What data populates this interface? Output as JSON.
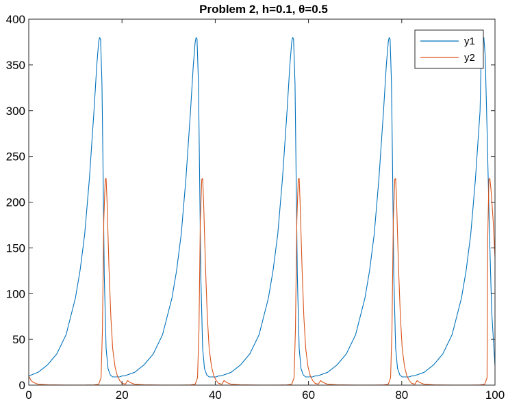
{
  "chart_data": {
    "type": "line",
    "title": "Problem 2, h=0.1, θ=0.5",
    "xlabel": "",
    "ylabel": "",
    "xlim": [
      0,
      100
    ],
    "ylim": [
      0,
      400
    ],
    "xticks": [
      0,
      20,
      40,
      60,
      80,
      100
    ],
    "yticks": [
      0,
      50,
      100,
      150,
      200,
      250,
      300,
      350,
      400
    ],
    "grid": false,
    "legend_position": "top-right",
    "series": [
      {
        "name": "y1",
        "color": "#0072BD",
        "x": [
          0,
          2,
          4,
          6,
          8,
          10,
          11,
          12,
          13,
          14,
          14.6,
          15,
          15.2,
          15.4,
          15.7,
          15.9,
          16.2,
          16.6,
          17,
          17.5,
          18,
          18.5,
          19,
          19.5,
          20,
          20.5
        ],
        "y": [
          10,
          14,
          22,
          34,
          55,
          95,
          125,
          165,
          225,
          300,
          350,
          375,
          380,
          378,
          330,
          250,
          120,
          40,
          18,
          11,
          9,
          9,
          9,
          9,
          10,
          10
        ],
        "period": 20.7,
        "end": [
          [
            97,
            350
          ],
          [
            97.3,
            370
          ],
          [
            97.6,
            380
          ],
          [
            97.9,
            360
          ],
          [
            98.3,
            280
          ],
          [
            98.8,
            170
          ],
          [
            99.3,
            80
          ],
          [
            100,
            21
          ]
        ]
      },
      {
        "name": "y2",
        "color": "#D95319",
        "x": [
          0,
          0.5,
          1,
          2,
          4,
          8,
          12,
          14,
          15,
          15.5,
          15.8,
          16.1,
          16.4,
          16.6,
          16.8,
          17.2,
          17.6,
          18,
          18.5,
          19,
          19.5,
          20,
          20.7
        ],
        "y": [
          10,
          5,
          3,
          1,
          0.3,
          0.1,
          0.1,
          0.2,
          1,
          8,
          60,
          180,
          225,
          226,
          200,
          130,
          75,
          40,
          20,
          10,
          5,
          2,
          1
        ],
        "period": 20.7,
        "end": [
          [
            98.4,
            150
          ],
          [
            98.7,
            225
          ],
          [
            98.9,
            226
          ],
          [
            99.2,
            210
          ],
          [
            99.6,
            180
          ],
          [
            100,
            140
          ]
        ]
      }
    ]
  }
}
